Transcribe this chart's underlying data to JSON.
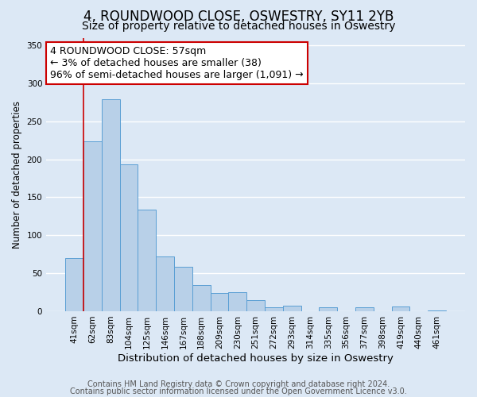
{
  "title": "4, ROUNDWOOD CLOSE, OSWESTRY, SY11 2YB",
  "subtitle": "Size of property relative to detached houses in Oswestry",
  "xlabel": "Distribution of detached houses by size in Oswestry",
  "ylabel": "Number of detached properties",
  "bar_labels": [
    "41sqm",
    "62sqm",
    "83sqm",
    "104sqm",
    "125sqm",
    "146sqm",
    "167sqm",
    "188sqm",
    "209sqm",
    "230sqm",
    "251sqm",
    "272sqm",
    "293sqm",
    "314sqm",
    "335sqm",
    "356sqm",
    "377sqm",
    "398sqm",
    "419sqm",
    "440sqm",
    "461sqm"
  ],
  "bar_values": [
    70,
    224,
    279,
    193,
    134,
    72,
    58,
    34,
    24,
    25,
    15,
    5,
    7,
    0,
    5,
    0,
    5,
    0,
    6,
    0,
    1
  ],
  "bar_color": "#b8d0e8",
  "bar_edge_color": "#5a9fd4",
  "highlight_line_color": "#cc0000",
  "ylim": [
    0,
    360
  ],
  "yticks": [
    0,
    50,
    100,
    150,
    200,
    250,
    300,
    350
  ],
  "annotation_box_text": "4 ROUNDWOOD CLOSE: 57sqm\n← 3% of detached houses are smaller (38)\n96% of semi-detached houses are larger (1,091) →",
  "annotation_box_color": "#ffffff",
  "annotation_box_edge_color": "#cc0000",
  "footer_line1": "Contains HM Land Registry data © Crown copyright and database right 2024.",
  "footer_line2": "Contains public sector information licensed under the Open Government Licence v3.0.",
  "background_color": "#dce8f5",
  "plot_background_color": "#dce8f5",
  "grid_color": "#ffffff",
  "title_fontsize": 12,
  "subtitle_fontsize": 10,
  "xlabel_fontsize": 9.5,
  "ylabel_fontsize": 8.5,
  "tick_fontsize": 7.5,
  "annotation_fontsize": 9,
  "footer_fontsize": 7
}
